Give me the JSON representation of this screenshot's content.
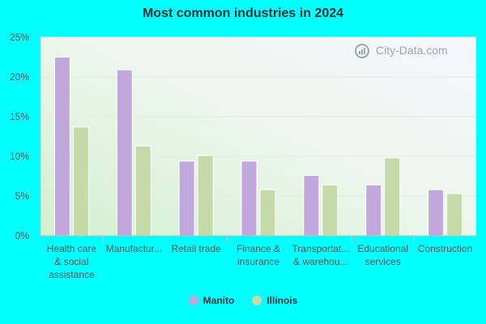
{
  "chart_data": {
    "type": "bar",
    "title": "Most common industries in 2024",
    "categories": [
      [
        "Health care",
        "& social",
        "assistance"
      ],
      [
        "Manufactur..."
      ],
      [
        "Retail trade"
      ],
      [
        "Finance &",
        "insurance"
      ],
      [
        "Transportat...",
        "& warehou..."
      ],
      [
        "Educational",
        "services"
      ],
      [
        "Construction"
      ]
    ],
    "series": [
      {
        "name": "Manito",
        "color": "#c0a8dc",
        "values": [
          22.5,
          20.9,
          9.4,
          9.4,
          7.6,
          6.4,
          5.8
        ]
      },
      {
        "name": "Illinois",
        "color": "#c6d9a8",
        "values": [
          13.7,
          11.3,
          10.1,
          5.8,
          6.4,
          9.8,
          5.3
        ]
      }
    ],
    "yticks": [
      "0%",
      "5%",
      "10%",
      "15%",
      "20%",
      "25%"
    ],
    "ylim": [
      0,
      25
    ],
    "legend_position": "bottom-center",
    "grid": true
  },
  "watermark": "City-Data.com"
}
